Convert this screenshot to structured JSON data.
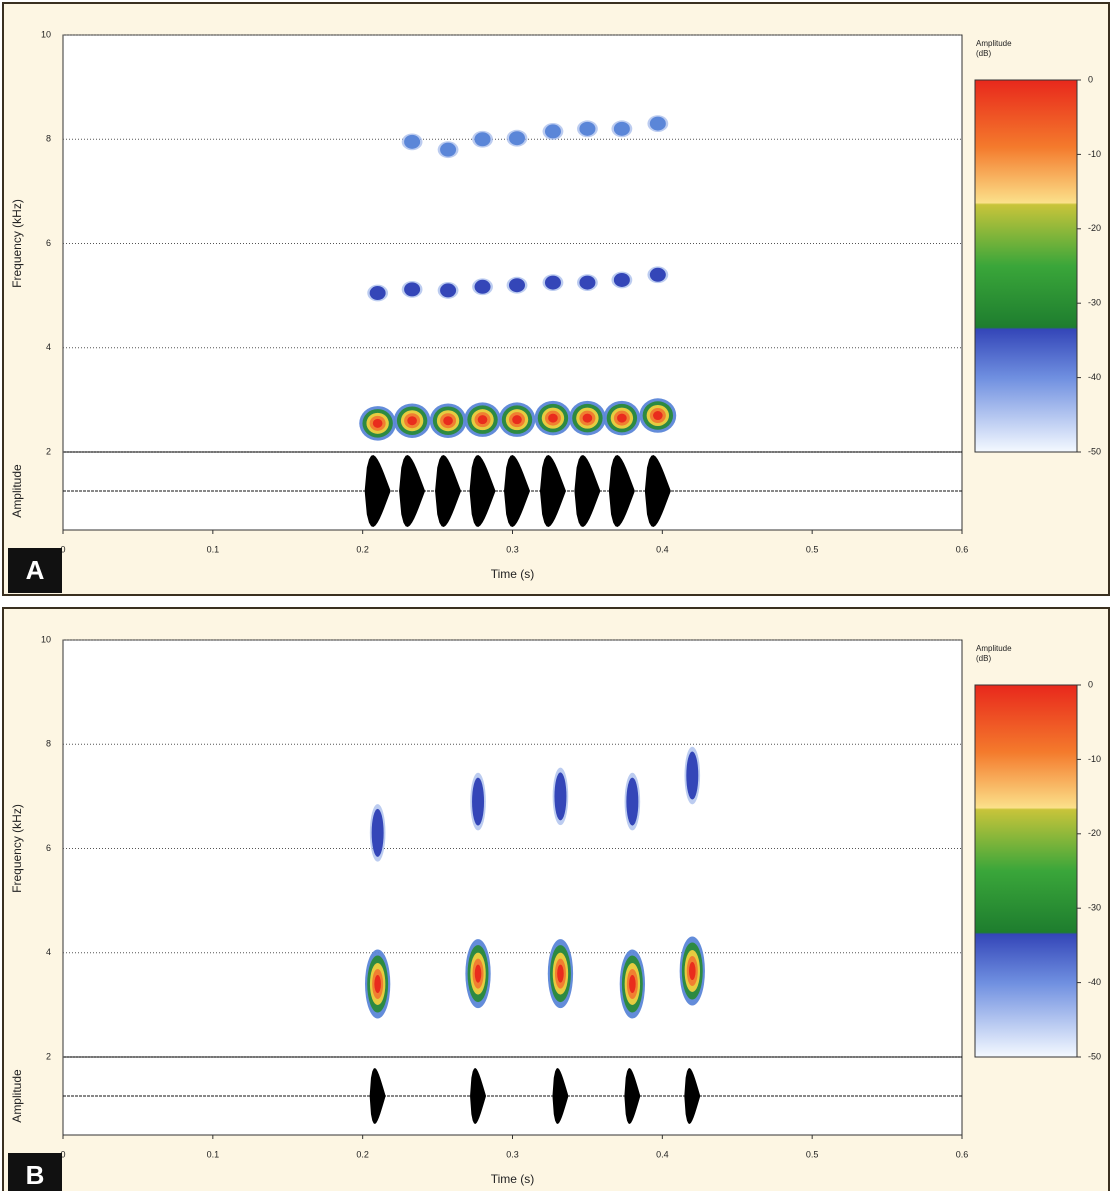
{
  "chart_data": [
    {
      "type": "spectrogram",
      "panel_label": "A",
      "xlabel": "Time (s)",
      "ylabel": "Frequency (kHz)",
      "amplitude_label": "Amplitude",
      "colorbar_title": [
        "Amplitude",
        "(dB)"
      ],
      "clim": [
        -50,
        0
      ],
      "cticks": [
        0,
        -10,
        -20,
        -30,
        -40,
        -50
      ],
      "xlim": [
        0,
        0.6
      ],
      "xticks": [
        0,
        0.1,
        0.2,
        0.3,
        0.4,
        0.5,
        0.6
      ],
      "ylim": [
        2,
        10
      ],
      "yticks": [
        2,
        4,
        6,
        8,
        10
      ],
      "grid": true,
      "x": [
        0.21,
        0.233,
        0.257,
        0.28,
        0.303,
        0.327,
        0.35,
        0.373,
        0.397
      ],
      "series": [
        {
          "color": "#e8281c",
          "values": [
            2.55,
            2.6,
            2.6,
            2.62,
            2.62,
            2.65,
            2.65,
            2.65,
            2.7
          ]
        },
        {
          "color": "#3446b8",
          "values": [
            5.05,
            5.12,
            5.1,
            5.17,
            5.2,
            5.25,
            5.25,
            5.3,
            5.4
          ]
        },
        {
          "color": "#5b86d8",
          "values": [
            null,
            7.95,
            7.8,
            8.0,
            8.02,
            8.15,
            8.2,
            8.2,
            8.3
          ]
        }
      ]
    },
    {
      "type": "spectrogram",
      "panel_label": "B",
      "xlabel": "Time (s)",
      "ylabel": "Frequency (kHz)",
      "amplitude_label": "Amplitude",
      "colorbar_title": [
        "Amplitude",
        "(dB)"
      ],
      "clim": [
        -50,
        0
      ],
      "cticks": [
        0,
        -10,
        -20,
        -30,
        -40,
        -50
      ],
      "xlim": [
        0,
        0.6
      ],
      "xticks": [
        0,
        0.1,
        0.2,
        0.3,
        0.4,
        0.5,
        0.6
      ],
      "ylim": [
        2,
        10
      ],
      "yticks": [
        2,
        4,
        6,
        8,
        10
      ],
      "grid": true,
      "x": [
        0.21,
        0.277,
        0.332,
        0.38,
        0.42
      ],
      "series": [
        {
          "color": "#e8281c",
          "values": [
            3.4,
            3.6,
            3.6,
            3.4,
            3.65
          ]
        },
        {
          "color": "#3446b8",
          "values": [
            6.3,
            6.9,
            7.0,
            6.9,
            7.4
          ]
        }
      ]
    }
  ]
}
